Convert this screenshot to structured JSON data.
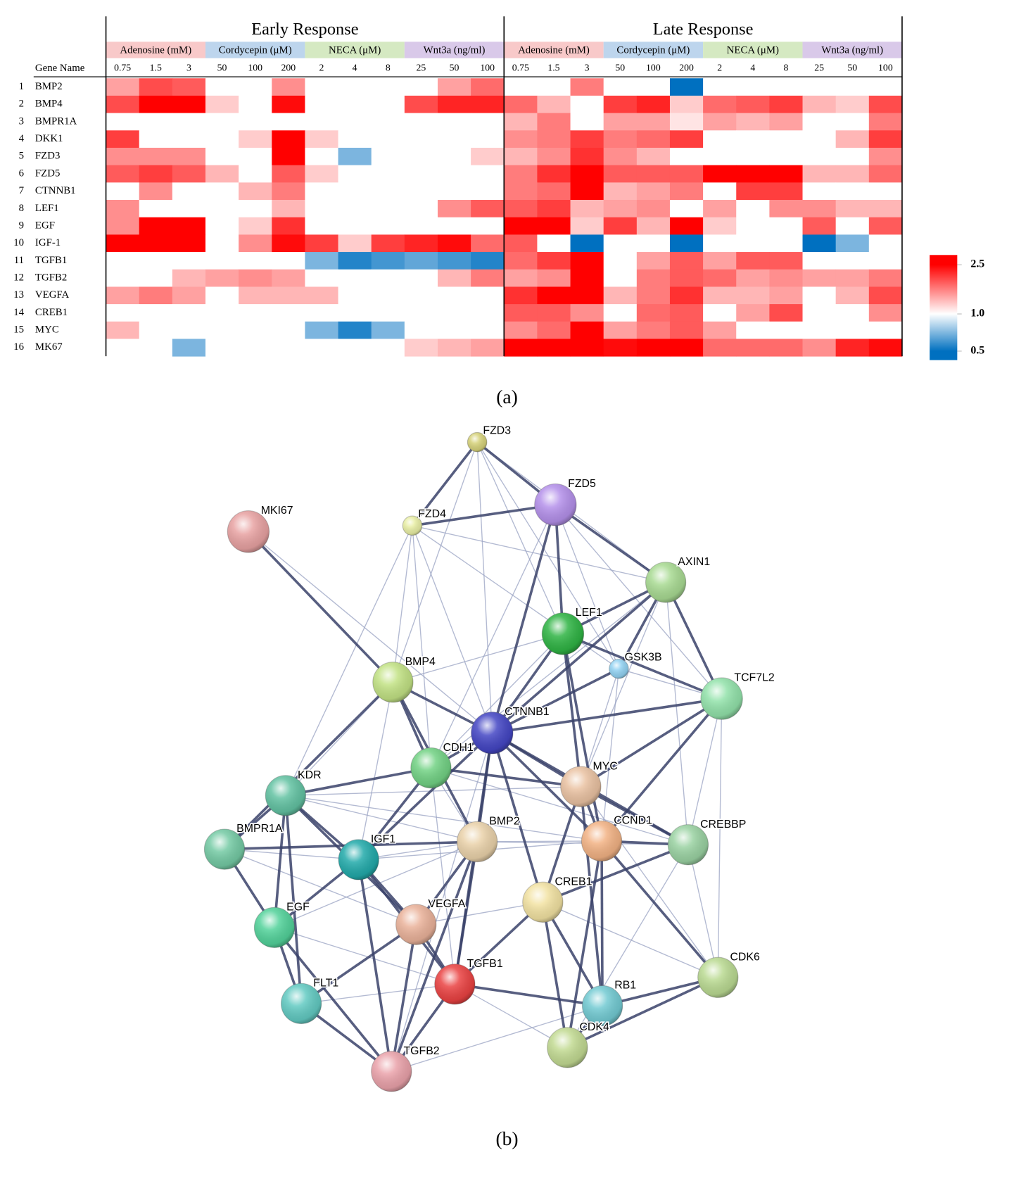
{
  "chart_data": {
    "type": "heatmap",
    "row_header": "Gene Name",
    "row_numbers": [
      1,
      2,
      3,
      4,
      5,
      6,
      7,
      8,
      9,
      10,
      11,
      12,
      13,
      14,
      15,
      16
    ],
    "rows": [
      "BMP2",
      "BMP4",
      "BMPR1A",
      "DKK1",
      "FZD3",
      "FZD5",
      "CTNNB1",
      "LEF1",
      "EGF",
      "IGF-1",
      "TGFB1",
      "TGFB2",
      "VEGFA",
      "CREB1",
      "MYC",
      "MK67"
    ],
    "groups": [
      {
        "title": "Early Response",
        "conditions": [
          {
            "name": "Adenosine (mM)",
            "color": "#f8c9c9",
            "doses": [
              0.75,
              1.5,
              3
            ]
          },
          {
            "name": "Cordycepin (μM)",
            "color": "#bdd5ed",
            "doses": [
              50,
              100,
              200
            ]
          },
          {
            "name": "NECA (μM)",
            "color": "#d5e9c2",
            "doses": [
              2,
              4,
              8
            ]
          },
          {
            "name": "Wnt3a (ng/ml)",
            "color": "#d9c9e9",
            "doses": [
              25,
              50,
              100
            ]
          }
        ],
        "values": [
          [
            1.4,
            1.9,
            1.8,
            1,
            1,
            1.5,
            1,
            1,
            1,
            1,
            1.4,
            1.7
          ],
          [
            1.9,
            2.5,
            2.5,
            1.2,
            1,
            2.4,
            1,
            1,
            1,
            1.9,
            2.2,
            2.2
          ],
          [
            1,
            1,
            1,
            1,
            1,
            1,
            1,
            1,
            1,
            1,
            1,
            1
          ],
          [
            2,
            1,
            1,
            1,
            1.2,
            2.5,
            1.2,
            1,
            1,
            1,
            1,
            1
          ],
          [
            1.5,
            1.5,
            1.5,
            1,
            1,
            2.5,
            1,
            0.7,
            1,
            1,
            1,
            1.2
          ],
          [
            1.8,
            2,
            1.8,
            1.3,
            1,
            1.8,
            1.2,
            1,
            1,
            1,
            1,
            1
          ],
          [
            1,
            1.5,
            1,
            1,
            1.3,
            1.6,
            1,
            1,
            1,
            1,
            1,
            1
          ],
          [
            1.5,
            1,
            1,
            1,
            1,
            1.3,
            1,
            1,
            1,
            1,
            1.5,
            1.8
          ],
          [
            1.5,
            2.5,
            2.5,
            1,
            1.2,
            2.1,
            1,
            1,
            1,
            1,
            1,
            1
          ],
          [
            2.5,
            2.5,
            2.5,
            1,
            1.5,
            2.4,
            2,
            1.2,
            2,
            2.2,
            2.4,
            1.7
          ],
          [
            1,
            1,
            1,
            1,
            1,
            1,
            0.7,
            0.55,
            0.6,
            0.65,
            0.6,
            0.55
          ],
          [
            1,
            1,
            1.3,
            1.4,
            1.5,
            1.4,
            1,
            1,
            1,
            1,
            1.3,
            1.6
          ],
          [
            1.4,
            1.6,
            1.4,
            1,
            1.3,
            1.3,
            1.3,
            1,
            1,
            1,
            1,
            1
          ],
          [
            1,
            1,
            1,
            1,
            1,
            1,
            1,
            1,
            1,
            1,
            1,
            1
          ],
          [
            1.3,
            1,
            1,
            1,
            1,
            1,
            0.7,
            0.55,
            0.7,
            1,
            1,
            1
          ],
          [
            1,
            1,
            0.7,
            1,
            1,
            1,
            1,
            1,
            1,
            1.2,
            1.3,
            1.4
          ]
        ]
      },
      {
        "title": "Late Response",
        "conditions": [
          {
            "name": "Adenosine (mM)",
            "color": "#f8c9c9",
            "doses": [
              0.75,
              1.5,
              3
            ]
          },
          {
            "name": "Cordycepin (μM)",
            "color": "#bdd5ed",
            "doses": [
              50,
              100,
              200
            ]
          },
          {
            "name": "NECA (μM)",
            "color": "#d5e9c2",
            "doses": [
              2,
              4,
              8
            ]
          },
          {
            "name": "Wnt3a (ng/ml)",
            "color": "#d9c9e9",
            "doses": [
              25,
              50,
              100
            ]
          }
        ],
        "values": [
          [
            1,
            1,
            1.6,
            1,
            1,
            0.5,
            1,
            1,
            1,
            1,
            1,
            1
          ],
          [
            1.7,
            1.3,
            1,
            2,
            2.2,
            1.2,
            1.7,
            1.8,
            2,
            1.3,
            1.2,
            1.9
          ],
          [
            1.3,
            1.6,
            1,
            1.4,
            1.4,
            1.1,
            1.4,
            1.3,
            1.4,
            1,
            1,
            1.6
          ],
          [
            1.5,
            1.6,
            2,
            1.6,
            1.7,
            2,
            1,
            1,
            1,
            1,
            1.3,
            2
          ],
          [
            1.3,
            1.5,
            2.1,
            1.5,
            1.3,
            1,
            1,
            1,
            1,
            1,
            1,
            1.5
          ],
          [
            1.6,
            2.1,
            2.5,
            1.8,
            1.8,
            1.8,
            2.5,
            2.5,
            2.5,
            1.3,
            1.3,
            1.7
          ],
          [
            1.6,
            1.7,
            2.5,
            1.3,
            1.4,
            1.6,
            1,
            2,
            2,
            1,
            1,
            1
          ],
          [
            1.8,
            2,
            1.3,
            1.4,
            1.5,
            1,
            1.4,
            1,
            1.5,
            1.5,
            1.3,
            1.3
          ],
          [
            2.5,
            2.5,
            1.2,
            2,
            1.3,
            2.5,
            1.2,
            1,
            1,
            1.8,
            1,
            1.8
          ],
          [
            1.8,
            1,
            0.5,
            1,
            1,
            0.5,
            1,
            1,
            1,
            0.5,
            0.7,
            1
          ],
          [
            1.7,
            2,
            2.5,
            1,
            1.4,
            1.8,
            1.4,
            1.8,
            1.8,
            1,
            1,
            1
          ],
          [
            1.4,
            1.5,
            2.5,
            1,
            1.6,
            1.8,
            1.7,
            1.4,
            1.5,
            1.4,
            1.4,
            1.6
          ],
          [
            2.1,
            2.5,
            2.5,
            1.3,
            1.6,
            2.1,
            1.3,
            1.3,
            1.4,
            1,
            1.3,
            1.9
          ],
          [
            1.8,
            1.8,
            1.5,
            1,
            1.7,
            1.8,
            1,
            1.4,
            1.9,
            1,
            1,
            1.5
          ],
          [
            1.5,
            1.7,
            2.5,
            1.4,
            1.6,
            1.8,
            1.4,
            1,
            1,
            1,
            1,
            1
          ],
          [
            2.5,
            2.5,
            2.5,
            2.4,
            2.5,
            2.5,
            1.7,
            1.7,
            1.7,
            1.5,
            2.2,
            2.4
          ]
        ]
      }
    ],
    "legend": {
      "ticks": [
        2.5,
        {
          "value": 1,
          "label": "1.0"
        },
        0.5
      ],
      "colors": [
        "#ff0000",
        "#ffffff",
        "#0070c0"
      ],
      "log": true
    }
  },
  "captions": [
    "(a)",
    "(b)"
  ],
  "network": {
    "nodes": [
      {
        "label": "FZD3",
        "color": "#d6d27a"
      },
      {
        "label": "FZD5",
        "color": "#b490ea"
      },
      {
        "label": "MKI67",
        "color": "#e8a2a2"
      },
      {
        "label": "FZD4",
        "color": "#e8eea4"
      },
      {
        "label": "AXIN1",
        "color": "#a8da92"
      },
      {
        "label": "LEF1",
        "color": "#2fb444"
      },
      {
        "label": "GSK3B",
        "color": "#92d2f2"
      },
      {
        "label": "BMP4",
        "color": "#c2e284"
      },
      {
        "label": "TCF7L2",
        "color": "#92e2aa"
      },
      {
        "label": "CTNNB1",
        "color": "#4446c4"
      },
      {
        "label": "CDH1",
        "color": "#72d284"
      },
      {
        "label": "MYC",
        "color": "#eac2a2"
      },
      {
        "label": "KDR",
        "color": "#62c2a2"
      },
      {
        "label": "BMPR1A",
        "color": "#74caa4"
      },
      {
        "label": "IGF1",
        "color": "#22aaaa"
      },
      {
        "label": "BMP2",
        "color": "#ead2aa"
      },
      {
        "label": "CCND1",
        "color": "#f2b284"
      },
      {
        "label": "CREBBP",
        "color": "#9ad2a2"
      },
      {
        "label": "CREB1",
        "color": "#f2e2a2"
      },
      {
        "label": "EGF",
        "color": "#52d29a"
      },
      {
        "label": "VEGFA",
        "color": "#eab29a"
      },
      {
        "label": "FLT1",
        "color": "#62cac2"
      },
      {
        "label": "TGFB1",
        "color": "#ea4242"
      },
      {
        "label": "CDK6",
        "color": "#bada92"
      },
      {
        "label": "RB1",
        "color": "#72cad2"
      },
      {
        "label": "CDK4",
        "color": "#c2da92"
      },
      {
        "label": "TGFB2",
        "color": "#eaa2aa"
      }
    ]
  }
}
